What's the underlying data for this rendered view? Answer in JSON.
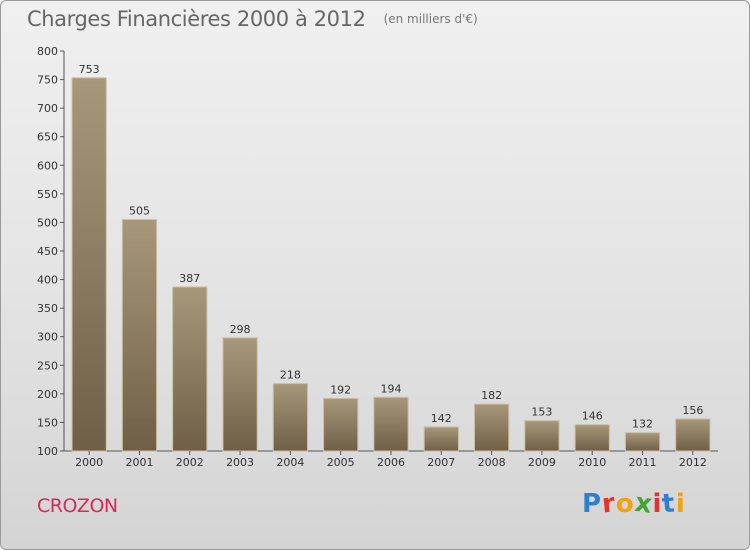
{
  "header": {
    "title": "Charges Financières 2000 à 2012",
    "subtitle": "(en milliers d'€)"
  },
  "commune": "CROZON",
  "logo": {
    "text": "Proxiti",
    "letters": [
      "P",
      "r",
      "o",
      "x",
      "i",
      "t",
      "i"
    ]
  },
  "colors": {
    "bar": "#8c7b61",
    "bar_light": "#a8987a",
    "bar_dark": "#6f5f47",
    "label": "#333333",
    "commune": "#d62b5a"
  },
  "chart_data": {
    "type": "bar",
    "title": "Charges Financières 2000 à 2012",
    "subtitle": "(en milliers d'€)",
    "categories": [
      "2000",
      "2001",
      "2002",
      "2003",
      "2004",
      "2005",
      "2006",
      "2007",
      "2008",
      "2009",
      "2010",
      "2011",
      "2012"
    ],
    "values": [
      753,
      505,
      387,
      298,
      218,
      192,
      194,
      142,
      182,
      153,
      146,
      132,
      156
    ],
    "ylim": [
      100,
      800
    ],
    "yticks": [
      100,
      150,
      200,
      250,
      300,
      350,
      400,
      450,
      500,
      550,
      600,
      650,
      700,
      750,
      800
    ],
    "grid": false,
    "data_labels": true
  }
}
